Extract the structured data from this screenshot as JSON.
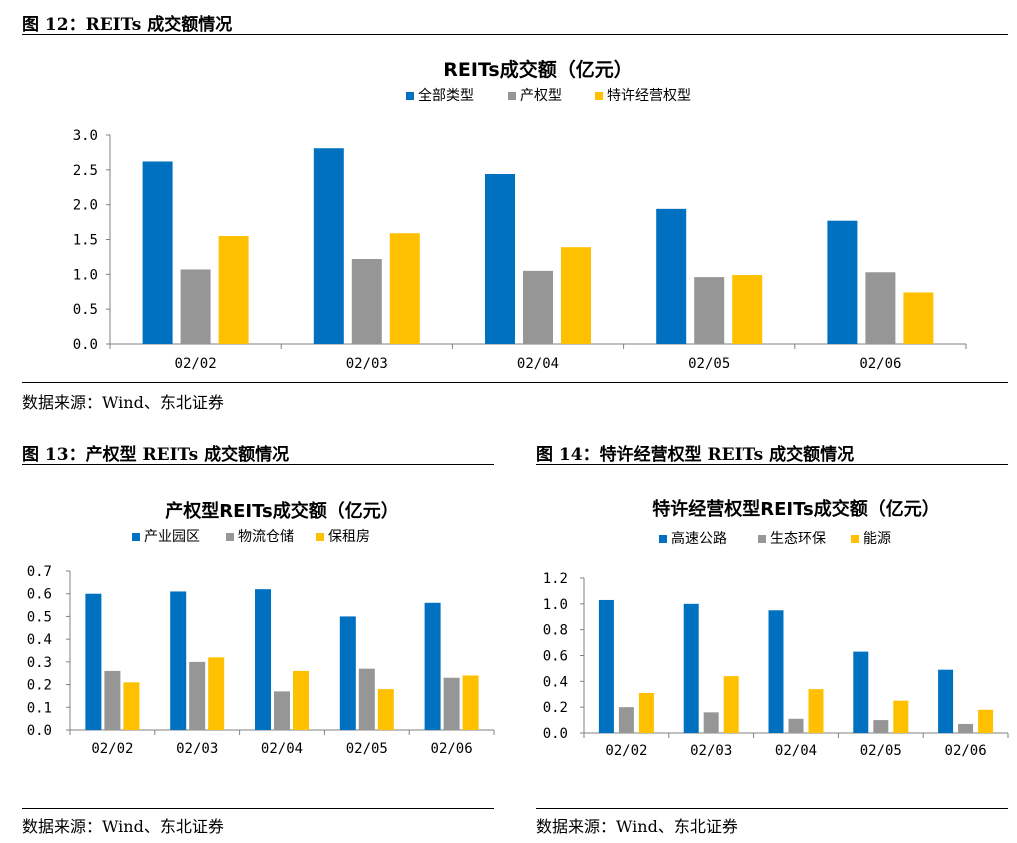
{
  "fig12": {
    "title": "图 12：REITs 成交额情况",
    "source": "数据来源：Wind、东北证券"
  },
  "fig13": {
    "title": "图 13：产权型 REITs 成交额情况",
    "source": "数据来源：Wind、东北证券"
  },
  "fig14": {
    "title": "图 14：特许经营权型 REITs 成交额情况",
    "source": "数据来源：Wind、东北证券"
  },
  "chart_data": [
    {
      "type": "bar",
      "title": "REITs成交额（亿元）",
      "xlabel": "",
      "ylabel": "",
      "categories": [
        "02/02",
        "02/03",
        "02/04",
        "02/05",
        "02/06"
      ],
      "ylim": [
        0,
        3.0
      ],
      "yticks": [
        "0.0",
        "0.5",
        "1.0",
        "1.5",
        "2.0",
        "2.5",
        "3.0"
      ],
      "legend_position": "top-center",
      "grid": false,
      "series": [
        {
          "name": "全部类型",
          "color": "#0070C0",
          "values": [
            2.62,
            2.81,
            2.44,
            1.94,
            1.77
          ]
        },
        {
          "name": "产权型",
          "color": "#969696",
          "values": [
            1.07,
            1.22,
            1.05,
            0.96,
            1.03
          ]
        },
        {
          "name": "特许经营权型",
          "color": "#FFC000",
          "values": [
            1.55,
            1.59,
            1.39,
            0.99,
            0.74
          ]
        }
      ]
    },
    {
      "type": "bar",
      "title": "产权型REITs成交额（亿元）",
      "xlabel": "",
      "ylabel": "",
      "categories": [
        "02/02",
        "02/03",
        "02/04",
        "02/05",
        "02/06"
      ],
      "ylim": [
        0,
        0.7
      ],
      "yticks": [
        "0.0",
        "0.1",
        "0.2",
        "0.3",
        "0.4",
        "0.5",
        "0.6",
        "0.7"
      ],
      "legend_position": "top-center",
      "grid": false,
      "series": [
        {
          "name": "产业园区",
          "color": "#0070C0",
          "values": [
            0.6,
            0.61,
            0.62,
            0.5,
            0.56
          ]
        },
        {
          "name": "物流仓储",
          "color": "#969696",
          "values": [
            0.26,
            0.3,
            0.17,
            0.27,
            0.23
          ]
        },
        {
          "name": "保租房",
          "color": "#FFC000",
          "values": [
            0.21,
            0.32,
            0.26,
            0.18,
            0.24
          ]
        }
      ]
    },
    {
      "type": "bar",
      "title": "特许经营权型REITs成交额（亿元）",
      "xlabel": "",
      "ylabel": "",
      "categories": [
        "02/02",
        "02/03",
        "02/04",
        "02/05",
        "02/06"
      ],
      "ylim": [
        0,
        1.2
      ],
      "yticks": [
        "0.0",
        "0.2",
        "0.4",
        "0.6",
        "0.8",
        "1.0",
        "1.2"
      ],
      "legend_position": "top-center",
      "grid": false,
      "series": [
        {
          "name": "高速公路",
          "color": "#0070C0",
          "values": [
            1.03,
            1.0,
            0.95,
            0.63,
            0.49
          ]
        },
        {
          "name": "生态环保",
          "color": "#969696",
          "values": [
            0.2,
            0.16,
            0.11,
            0.1,
            0.07
          ]
        },
        {
          "name": "能源",
          "color": "#FFC000",
          "values": [
            0.31,
            0.44,
            0.34,
            0.25,
            0.18
          ]
        }
      ]
    }
  ]
}
